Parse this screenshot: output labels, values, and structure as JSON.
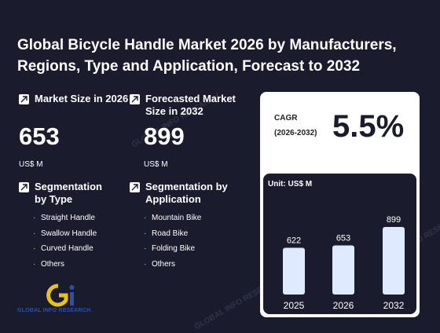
{
  "title": "Global Bicycle Handle Market 2026 by Manufacturers, Regions, Type and Application, Forecast to 2032",
  "market_size": {
    "label": "Market Size in 2026",
    "value": "653",
    "unit": "US$ M"
  },
  "forecast_size": {
    "label": "Forecasted Market Size in 2032",
    "value": "899",
    "unit": "US$ M"
  },
  "segment_type": {
    "label": "Segmentation by Type",
    "items": [
      "Straight Handle",
      "Swallow Handle",
      "Curved Handle",
      "Others"
    ]
  },
  "segment_application": {
    "label": "Segmentation by Application",
    "items": [
      "Mountain Bike",
      "Road Bike",
      "Folding Bike",
      "Others"
    ]
  },
  "cagr": {
    "label_line1": "CAGR",
    "label_line2": "(2026-2032)",
    "value": "5.5%"
  },
  "logo": {
    "text": "GLOBAL INFO RESEARCH",
    "watermark": "GLOBAL INFO RESEARCH"
  },
  "colors": {
    "background": "#1a1c2e",
    "bar_fill": "#deeaff",
    "card": "#ffffff",
    "logo_blue": "#2f4fa8",
    "logo_yellow": "#e8c21a"
  },
  "chart_data": {
    "type": "bar",
    "unit_label": "Unit: US$ M",
    "categories": [
      "2025",
      "2026",
      "2032"
    ],
    "values": [
      622,
      653,
      899
    ],
    "data_labels": [
      "622",
      "653",
      "899"
    ],
    "ylim": [
      0,
      1000
    ]
  }
}
